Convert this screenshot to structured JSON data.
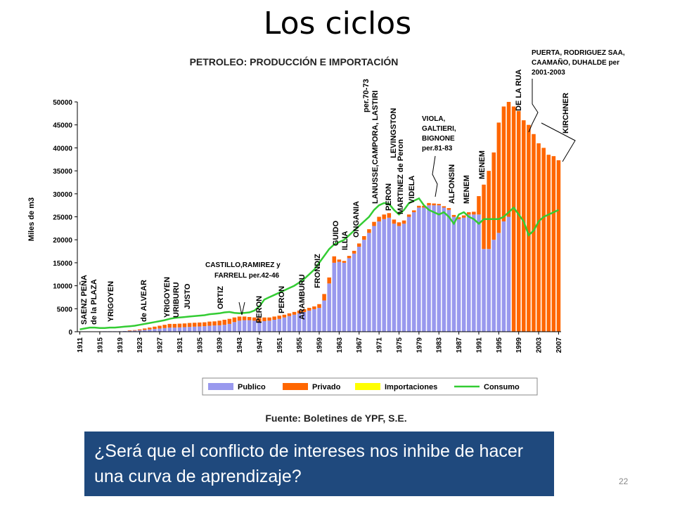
{
  "slide": {
    "title": "Los ciclos",
    "question": "¿Será que el conflicto de intereses nos inhibe de hacer una curva de aprendizaje?",
    "page_number": "22"
  },
  "colors": {
    "publico": "#9999ee",
    "privado": "#ff6600",
    "importaciones": "#ffff00",
    "consumo": "#33cc33",
    "question_bg": "#1f497d"
  },
  "chart_data": {
    "type": "bar",
    "title": "PETROLEO: PRODUCCIÓN E IMPORTACIÓN",
    "source": "Fuente: Boletines de YPF, S.E.",
    "ylabel": "Miles de m3",
    "ylim": [
      0,
      50000
    ],
    "yticks": [
      0,
      5000,
      10000,
      15000,
      20000,
      25000,
      30000,
      35000,
      40000,
      45000,
      50000
    ],
    "xtick_labels": [
      "1911",
      "1915",
      "1919",
      "1923",
      "1927",
      "1931",
      "1935",
      "1939",
      "1943",
      "1947",
      "1951",
      "1955",
      "1959",
      "1963",
      "1967",
      "1971",
      "1975",
      "1979",
      "1983",
      "1987",
      "1991",
      "1995",
      "1999",
      "2003",
      "2007"
    ],
    "legend": [
      "Publico",
      "Privado",
      "Importaciones",
      "Consumo"
    ],
    "x": [
      1911,
      1912,
      1913,
      1914,
      1915,
      1916,
      1917,
      1918,
      1919,
      1920,
      1921,
      1922,
      1923,
      1924,
      1925,
      1926,
      1927,
      1928,
      1929,
      1930,
      1931,
      1932,
      1933,
      1934,
      1935,
      1936,
      1937,
      1938,
      1939,
      1940,
      1941,
      1942,
      1943,
      1944,
      1945,
      1946,
      1947,
      1948,
      1949,
      1950,
      1951,
      1952,
      1953,
      1954,
      1955,
      1956,
      1957,
      1958,
      1959,
      1960,
      1961,
      1962,
      1963,
      1964,
      1965,
      1966,
      1967,
      1968,
      1969,
      1970,
      1971,
      1972,
      1973,
      1974,
      1975,
      1976,
      1977,
      1978,
      1979,
      1980,
      1981,
      1982,
      1983,
      1984,
      1985,
      1986,
      1987,
      1988,
      1989,
      1990,
      1991,
      1992,
      1993,
      1994,
      1995,
      1996,
      1997,
      1998,
      1999,
      2000,
      2001,
      2002,
      2003,
      2004,
      2005,
      2006,
      2007
    ],
    "series": [
      {
        "name": "Publico",
        "values": [
          0,
          0,
          0,
          0,
          0,
          100,
          100,
          100,
          100,
          150,
          200,
          250,
          300,
          400,
          500,
          600,
          700,
          800,
          900,
          900,
          950,
          1000,
          1050,
          1100,
          1150,
          1200,
          1300,
          1350,
          1400,
          1500,
          1700,
          2100,
          2400,
          2500,
          2500,
          2400,
          2200,
          2300,
          2400,
          2600,
          2800,
          3100,
          3400,
          3700,
          4000,
          4300,
          4600,
          4900,
          5200,
          6800,
          10500,
          15000,
          15200,
          15000,
          16000,
          17000,
          18500,
          20000,
          21500,
          23000,
          24000,
          24500,
          24800,
          23500,
          23000,
          23500,
          25000,
          26000,
          27000,
          27000,
          27500,
          27500,
          27500,
          27000,
          26500,
          25000,
          24500,
          24800,
          25500,
          25500,
          25500,
          18000,
          18000,
          20000,
          21500,
          24000,
          25000,
          0,
          0,
          0,
          0,
          0,
          0,
          0,
          0,
          0,
          0
        ]
      },
      {
        "name": "Privado",
        "values": [
          0,
          0,
          0,
          0,
          0,
          0,
          0,
          0,
          0,
          0,
          100,
          100,
          200,
          300,
          400,
          500,
          600,
          700,
          800,
          800,
          800,
          800,
          850,
          850,
          850,
          850,
          900,
          900,
          1000,
          1100,
          1100,
          1000,
          900,
          800,
          700,
          700,
          800,
          800,
          700,
          700,
          700,
          600,
          600,
          600,
          600,
          600,
          600,
          600,
          800,
          1400,
          1300,
          1400,
          500,
          400,
          500,
          600,
          700,
          800,
          800,
          900,
          1000,
          1000,
          1000,
          900,
          800,
          700,
          500,
          400,
          400,
          400,
          500,
          400,
          300,
          300,
          400,
          400,
          400,
          500,
          500,
          600,
          4000,
          14000,
          17000,
          19000,
          24000,
          25000,
          25000,
          49000,
          48000,
          46000,
          45000,
          43000,
          41000,
          40000,
          38500,
          38200,
          37300
        ]
      },
      {
        "name": "Importaciones",
        "values": [
          0,
          0,
          0,
          0,
          0,
          0,
          0,
          0,
          0,
          0,
          0,
          0,
          0,
          0,
          0,
          0,
          0,
          0,
          0,
          0,
          0,
          0,
          0,
          0,
          0,
          0,
          0,
          0,
          0,
          0,
          0,
          0,
          0,
          0,
          0,
          0,
          0,
          0,
          0,
          0,
          0,
          0,
          0,
          0,
          0,
          0,
          0,
          0,
          0,
          0,
          0,
          0,
          0,
          0,
          0,
          0,
          0,
          0,
          0,
          0,
          0,
          0,
          0,
          0,
          0,
          0,
          0,
          0,
          0,
          0,
          0,
          0,
          0,
          0,
          0,
          0,
          0,
          0,
          0,
          0,
          0,
          0,
          0,
          0,
          0,
          0,
          0,
          0,
          0,
          0,
          0,
          0,
          0,
          0,
          0,
          0,
          0
        ]
      },
      {
        "name": "Consumo",
        "values": [
          500,
          700,
          900,
          900,
          800,
          800,
          900,
          900,
          1000,
          1100,
          1200,
          1300,
          1500,
          1700,
          1900,
          2100,
          2300,
          2500,
          2800,
          3000,
          3100,
          3200,
          3300,
          3400,
          3500,
          3600,
          3800,
          3900,
          4000,
          4200,
          4300,
          4100,
          4000,
          4100,
          4200,
          4600,
          5500,
          7000,
          7500,
          8000,
          8500,
          9000,
          9500,
          10000,
          10700,
          11500,
          12500,
          13500,
          15000,
          16500,
          18000,
          19000,
          19500,
          20000,
          21000,
          22000,
          23000,
          24000,
          25000,
          26500,
          27500,
          28000,
          27800,
          26500,
          25500,
          26500,
          28000,
          28500,
          29000,
          27500,
          26500,
          26000,
          25500,
          26000,
          25000,
          23500,
          25500,
          26000,
          25000,
          24500,
          23500,
          24500,
          24500,
          24500,
          24500,
          25000,
          26000,
          27000,
          25500,
          24000,
          21000,
          22000,
          24000,
          25000,
          25500,
          26000,
          26500
        ]
      }
    ],
    "annotations": [
      "SAENZ PEÑA",
      "de la PLAZA",
      "YRIGOYEN",
      "de ALVEAR",
      "YRIGOYEN",
      "URIBURU",
      "JUSTO",
      "ORTIZ",
      "CASTILLO,RAMIREZ y",
      "FARRELL per.42-46",
      "PERON",
      "PERON",
      "ARAMBURU",
      "FRONDIZ",
      "ILLIA",
      "GUIDO",
      "ONGANIA",
      "LANUSSE,CAMPORA, LASTIRI",
      "per.70-73",
      "LEVINGSTON",
      "PERON",
      "MARTINEZ de Peron",
      "VIDELA",
      "VIOLA,",
      "GALTIERI,",
      "BIGNONE",
      "per.81-83",
      "ALFONSIN",
      "MENEM",
      "MENEM",
      "DE LA RUA",
      "PUERTA, RODRIGUEZ SAA,",
      "CAAMAÑO, DUHALDE per",
      "2001-2003",
      "KIRCHNER"
    ]
  }
}
